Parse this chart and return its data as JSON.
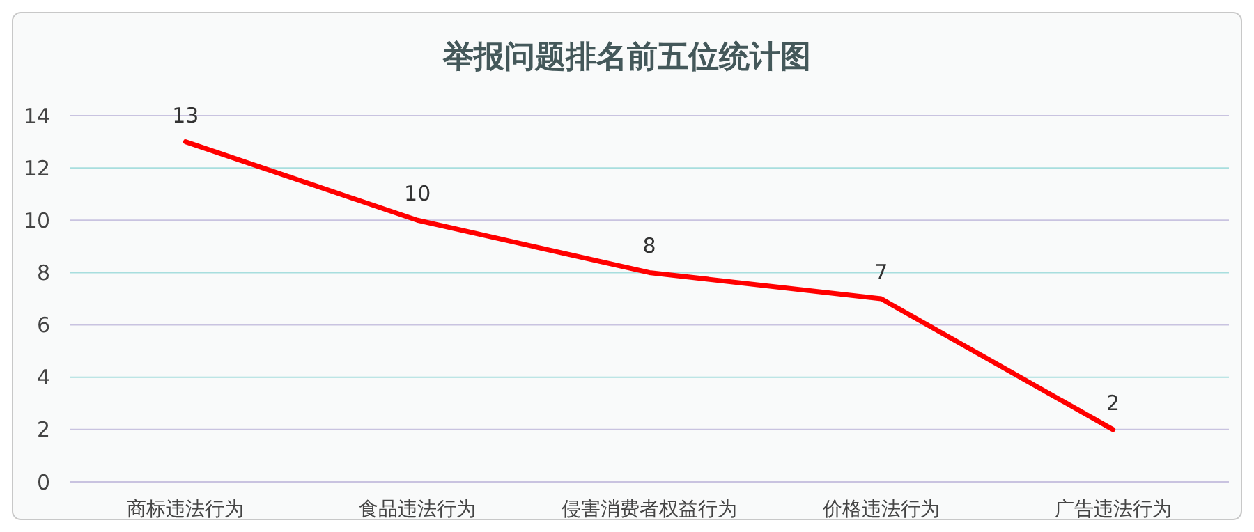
{
  "chart_data": {
    "type": "line",
    "title": "举报问题排名前五位统计图",
    "categories": [
      "商标违法行为",
      "食品违法行为",
      "侵害消费者权益行为",
      "价格违法行为",
      "广告违法行为"
    ],
    "series": [
      {
        "color": "#ff0000",
        "values": [
          13,
          10,
          8,
          7,
          2
        ]
      }
    ],
    "ylim": [
      0,
      14
    ],
    "yticks": [
      0,
      2,
      4,
      6,
      8,
      10,
      12,
      14
    ],
    "grid": "y",
    "data_labels": true,
    "marker": "none",
    "line_style": "solid"
  }
}
